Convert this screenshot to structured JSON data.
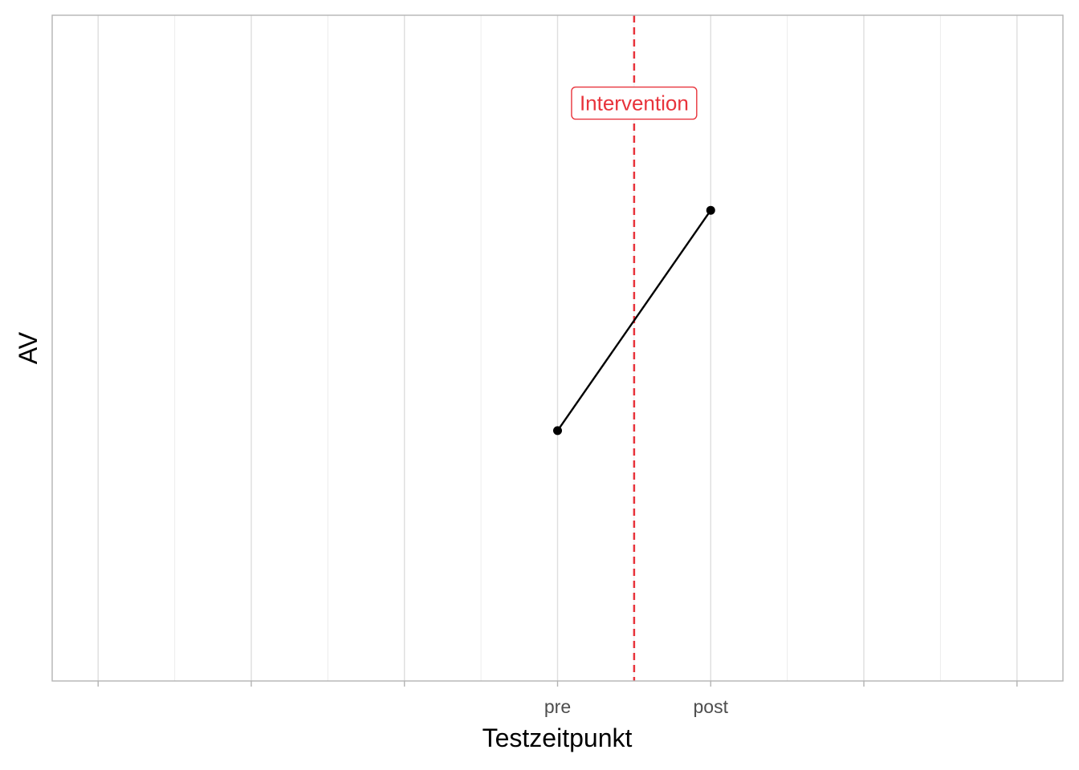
{
  "chart_data": {
    "type": "line",
    "title": "",
    "xlabel": "Testzeitpunkt",
    "ylabel": "AV",
    "categories": [
      "pre",
      "post"
    ],
    "x_positions": [
      4,
      5
    ],
    "xlim": [
      0.7,
      7.3
    ],
    "ylim": [
      0,
      1
    ],
    "series": [
      {
        "name": "AV",
        "x": [
          4,
          5
        ],
        "values": [
          0.376,
          0.707
        ],
        "color": "#000000"
      }
    ],
    "major_breaks": [
      1,
      2,
      3,
      4,
      5,
      6,
      7
    ],
    "minor_breaks": [
      1.5,
      2.5,
      3.5,
      4.5,
      5.5,
      6.5
    ],
    "vline": {
      "x": 4.5,
      "style": "dashed",
      "color": "#e8333b"
    },
    "annotation": {
      "text": "Intervention",
      "x": 4.5,
      "y": 0.868,
      "color": "#e8333b"
    },
    "grid": true,
    "legend": "none"
  }
}
